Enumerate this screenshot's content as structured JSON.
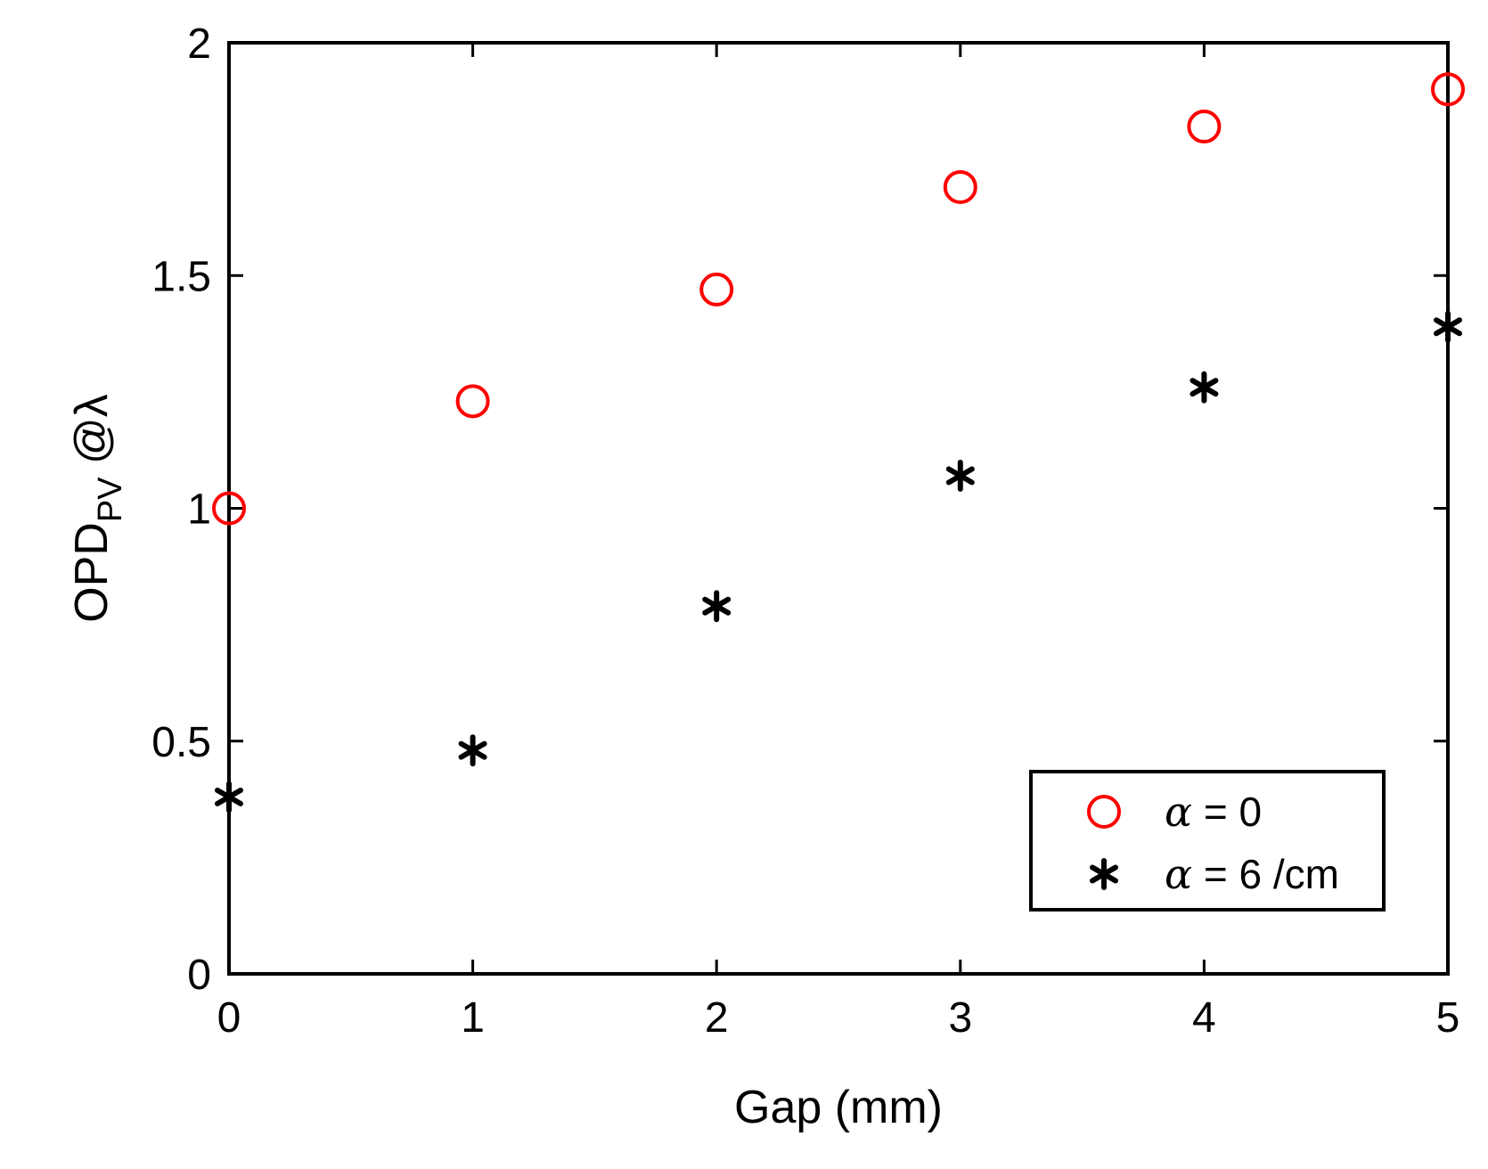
{
  "chart_data": {
    "type": "scatter",
    "xlabel": "Gap (mm)",
    "ylabel": {
      "main": "OPD",
      "subscript": "PV",
      "suffix": " @λ"
    },
    "xlim": [
      0,
      5
    ],
    "ylim": [
      0,
      2
    ],
    "x_ticks": [
      "0",
      "1",
      "2",
      "3",
      "4",
      "5"
    ],
    "y_ticks": [
      "0",
      "0.5",
      "1",
      "1.5",
      "2"
    ],
    "grid": false,
    "legend_position": "bottom-right",
    "series": [
      {
        "name": "α = 0",
        "name_symbol": "α",
        "name_rest": " = 0",
        "marker": "circle",
        "color": "#ff0000",
        "x": [
          0,
          1,
          2,
          3,
          4,
          5
        ],
        "y": [
          1.0,
          1.23,
          1.47,
          1.69,
          1.82,
          1.9
        ]
      },
      {
        "name": "α = 6 /cm",
        "name_symbol": "α",
        "name_rest": " = 6 /cm",
        "marker": "asterisk",
        "color": "#000000",
        "x": [
          0,
          1,
          2,
          3,
          4,
          5
        ],
        "y": [
          0.38,
          0.48,
          0.79,
          1.07,
          1.26,
          1.39
        ]
      }
    ]
  }
}
